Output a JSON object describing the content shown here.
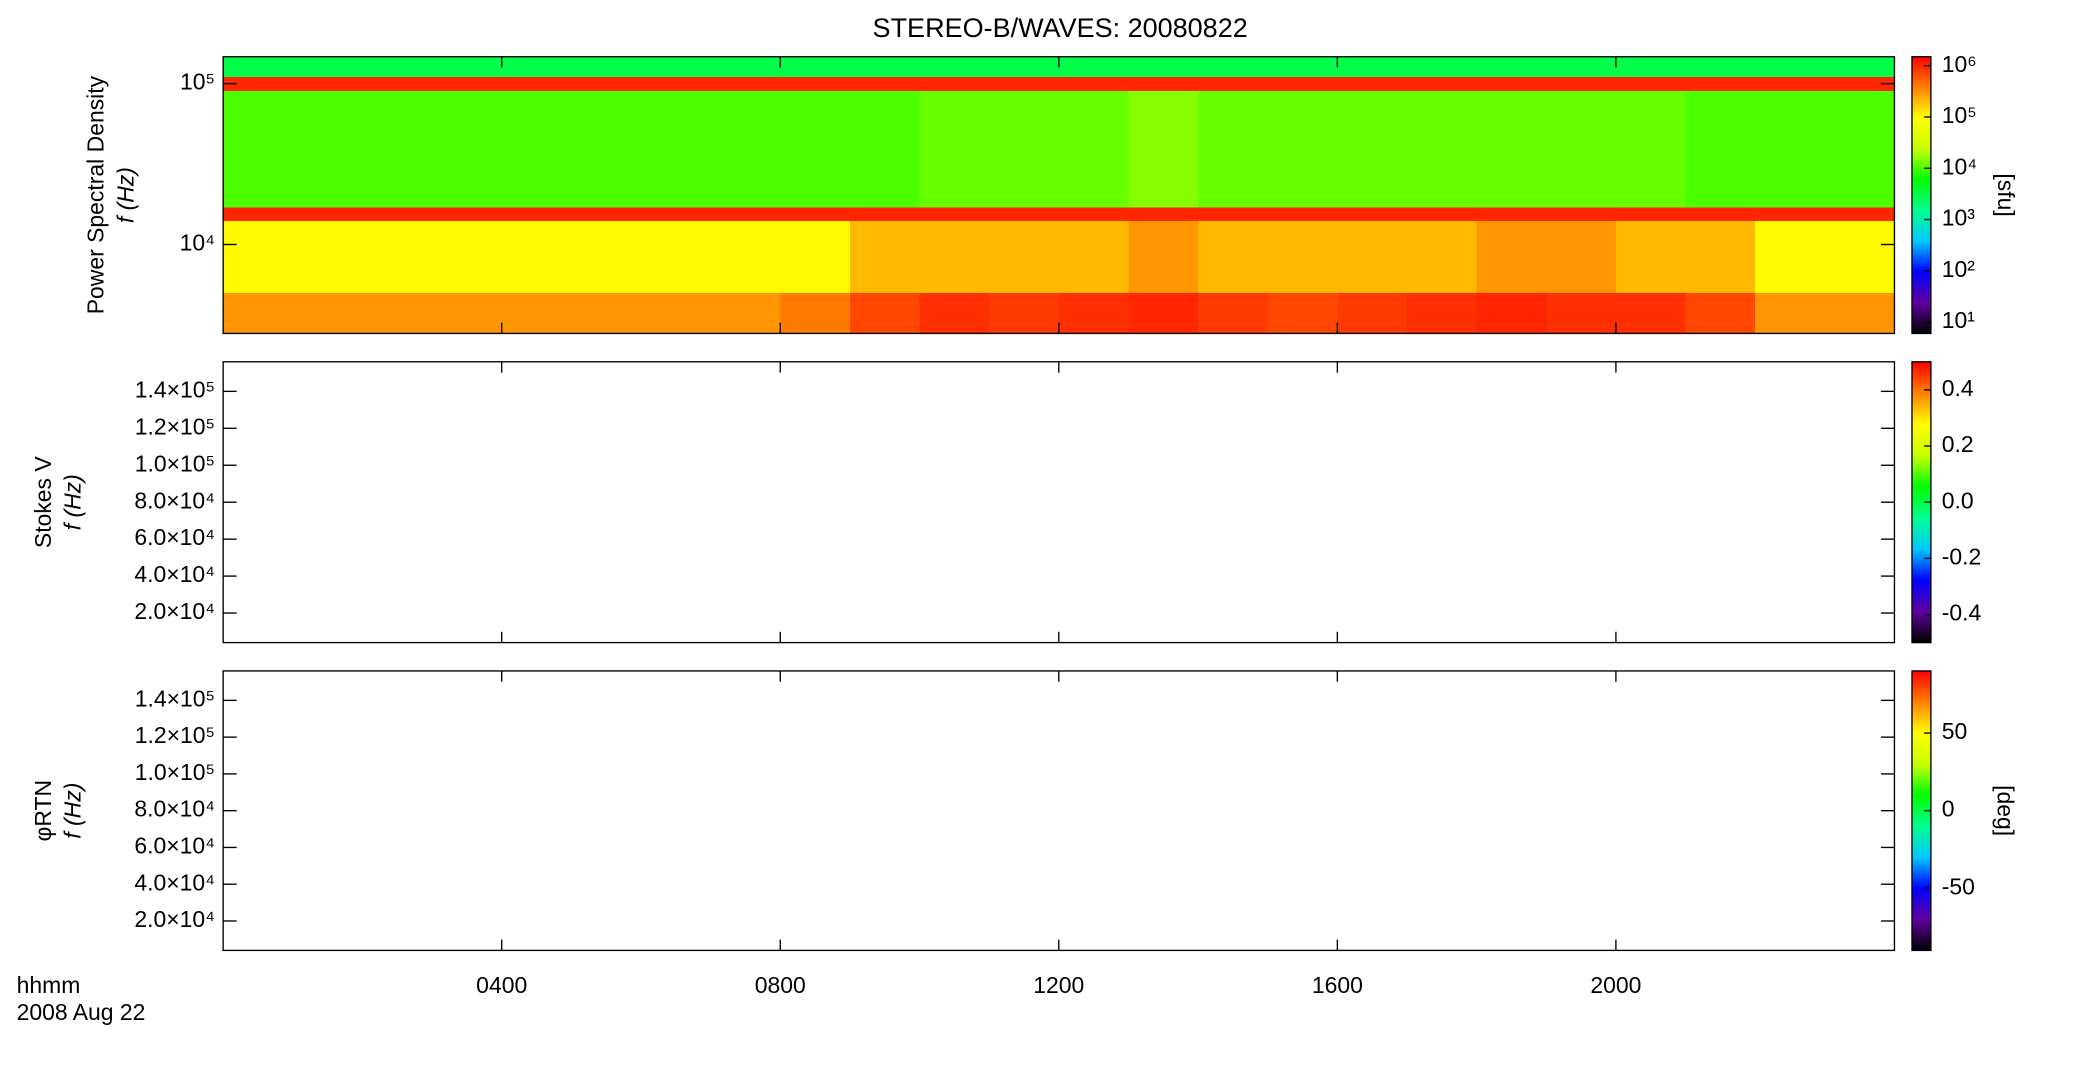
{
  "chart_data": [
    {
      "type": "heatmap",
      "title": "STEREO-B/WAVES: 20080822",
      "ylabel": [
        "Power Spectral Density",
        "f (Hz)"
      ],
      "x": [
        0,
        1,
        2,
        3,
        4,
        5,
        6,
        7,
        8,
        9,
        10,
        11,
        12,
        13,
        14,
        15,
        16,
        17,
        18,
        19,
        20,
        21,
        22,
        23,
        24
      ],
      "y": [
        2800,
        5000,
        14000,
        17000,
        90000,
        110000,
        147000
      ],
      "z": [
        [
          300000,
          300000,
          300000,
          300000,
          300000,
          300000,
          300000,
          300000,
          400000,
          700000,
          900000,
          800000,
          900000,
          1000000,
          800000,
          700000,
          800000,
          900000,
          1000000,
          900000,
          900000,
          700000,
          300000,
          300000
        ],
        [
          100000,
          100000,
          100000,
          100000,
          100000,
          100000,
          100000,
          100000,
          100000,
          200000,
          200000,
          200000,
          200000,
          300000,
          200000,
          200000,
          200000,
          200000,
          300000,
          300000,
          200000,
          200000,
          100000,
          100000
        ],
        [
          1000000,
          1000000,
          1000000,
          1000000,
          1000000,
          1000000,
          1000000,
          1000000,
          1000000,
          1000000,
          1000000,
          1000000,
          1000000,
          1000000,
          1000000,
          1000000,
          1000000,
          1000000,
          1000000,
          1000000,
          1000000,
          1000000,
          1000000,
          1000000
        ],
        [
          10000,
          10000,
          10000,
          10000,
          10000,
          10000,
          10000,
          10000,
          10000,
          10000,
          12000,
          12000,
          12000,
          15000,
          12000,
          12000,
          12000,
          12000,
          12000,
          12000,
          12000,
          10000,
          10000,
          10000
        ],
        [
          1000000,
          1000000,
          1000000,
          1000000,
          1000000,
          1000000,
          1000000,
          1000000,
          1000000,
          1000000,
          1000000,
          1000000,
          1000000,
          1000000,
          1000000,
          1000000,
          1000000,
          1000000,
          1000000,
          1000000,
          1000000,
          1000000,
          1000000,
          1000000
        ],
        [
          3000,
          3000,
          3000,
          3000,
          3000,
          3000,
          3000,
          3000,
          3000,
          3000,
          3000,
          3000,
          3000,
          3000,
          3000,
          3000,
          3000,
          3000,
          3000,
          3000,
          3000,
          3000,
          3000,
          3000
        ]
      ],
      "xlim": [
        0,
        24
      ],
      "xticks": [
        4,
        8,
        12,
        16,
        20
      ],
      "ylog": true,
      "ylim": [
        2800,
        147000
      ],
      "yticks": [
        {
          "value": 10000,
          "label": "10⁴"
        },
        {
          "value": 100000,
          "label": "10⁵"
        }
      ],
      "colormap": [
        "#000000",
        "#6000a0",
        "#0000ff",
        "#00c8ff",
        "#00ff90",
        "#00ff00",
        "#c8ff00",
        "#ffff00",
        "#ff8000",
        "#ff0000"
      ],
      "zlog": true,
      "zlim": [
        6,
        1500000
      ],
      "zticks": [
        {
          "value": 10,
          "label": "10¹"
        },
        {
          "value": 100,
          "label": "10²"
        },
        {
          "value": 1000,
          "label": "10³"
        },
        {
          "value": 10000,
          "label": "10⁴"
        },
        {
          "value": 100000,
          "label": "10⁵"
        },
        {
          "value": 1000000,
          "label": "10⁶"
        }
      ],
      "zlabel": "[sfu]"
    },
    {
      "type": "heatmap",
      "ylabel": [
        "Stokes V",
        "f (Hz)"
      ],
      "xlim": [
        0,
        24
      ],
      "xticks": [
        4,
        8,
        12,
        16,
        20
      ],
      "ylim": [
        4000,
        156000
      ],
      "yticks": [
        {
          "value": 20000,
          "label": "2.0×10⁴"
        },
        {
          "value": 40000,
          "label": "4.0×10⁴"
        },
        {
          "value": 60000,
          "label": "6.0×10⁴"
        },
        {
          "value": 80000,
          "label": "8.0×10⁴"
        },
        {
          "value": 100000,
          "label": "1.0×10⁵"
        },
        {
          "value": 120000,
          "label": "1.2×10⁵"
        },
        {
          "value": 140000,
          "label": "1.4×10⁵"
        }
      ],
      "colormap": [
        "#000000",
        "#6000a0",
        "#0000ff",
        "#00c8ff",
        "#00ff90",
        "#00ff00",
        "#c8ff00",
        "#ffff00",
        "#ff8000",
        "#ff0000"
      ],
      "zlim": [
        -0.5,
        0.5
      ],
      "zticks": [
        -0.4,
        -0.2,
        {
          "value": 0,
          "label": "0.0"
        },
        0.2,
        0.4
      ]
    },
    {
      "type": "heatmap",
      "ylabel": [
        "φRTN",
        "f (Hz)"
      ],
      "xlabel": [
        "hhmm",
        "2008 Aug 22"
      ],
      "xlim": [
        0,
        24
      ],
      "xticks": [
        {
          "value": 4,
          "label": "0400"
        },
        {
          "value": 8,
          "label": "0800"
        },
        {
          "value": 12,
          "label": "1200"
        },
        {
          "value": 16,
          "label": "1600"
        },
        {
          "value": 20,
          "label": "2000"
        }
      ],
      "ylim": [
        4000,
        156000
      ],
      "yticks": [
        {
          "value": 20000,
          "label": "2.0×10⁴"
        },
        {
          "value": 40000,
          "label": "4.0×10⁴"
        },
        {
          "value": 60000,
          "label": "6.0×10⁴"
        },
        {
          "value": 80000,
          "label": "8.0×10⁴"
        },
        {
          "value": 100000,
          "label": "1.0×10⁵"
        },
        {
          "value": 120000,
          "label": "1.2×10⁵"
        },
        {
          "value": 140000,
          "label": "1.4×10⁵"
        }
      ],
      "colormap": [
        "#000000",
        "#6000a0",
        "#0000ff",
        "#00c8ff",
        "#00ff90",
        "#00ff00",
        "#c8ff00",
        "#ffff00",
        "#ff8000",
        "#ff0000"
      ],
      "zlim": [
        -90,
        90
      ],
      "zticks": [
        -50,
        0,
        50
      ],
      "zlabel": "[deg]"
    }
  ]
}
